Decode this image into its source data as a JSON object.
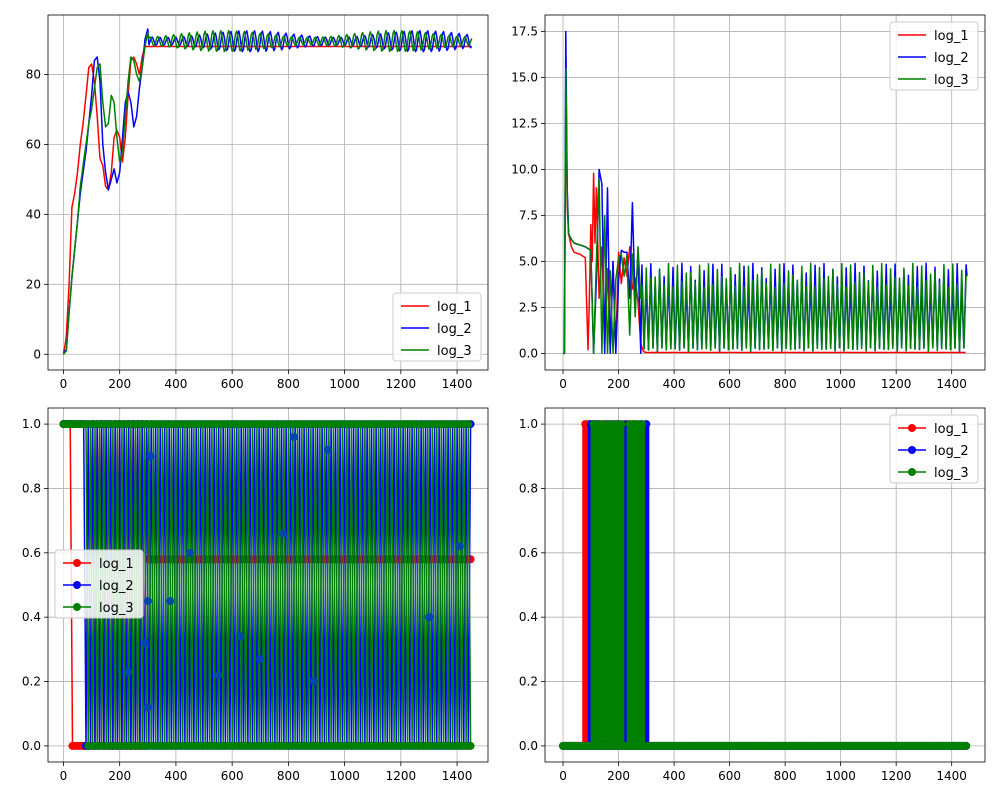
{
  "figure": {
    "rows": 2,
    "cols": 2
  },
  "chart_data": [
    {
      "type": "line",
      "panel": "top-left",
      "title": "",
      "xlabel": "",
      "ylabel": "",
      "xlim": [
        -55,
        1510
      ],
      "ylim": [
        -4.5,
        97
      ],
      "xticks": [
        0,
        200,
        400,
        600,
        800,
        1000,
        1200,
        1400
      ],
      "yticks": [
        0,
        20,
        40,
        60,
        80
      ],
      "ytick_labels": [
        "0",
        "20",
        "40",
        "60",
        "80"
      ],
      "grid": true,
      "legend": {
        "location": "lower-right",
        "entries": [
          "log_1",
          "log_2",
          "log_3"
        ]
      },
      "series": [
        {
          "name": "log_1",
          "color": "#ff0000",
          "x": [
            0,
            10,
            20,
            30,
            40,
            50,
            60,
            70,
            80,
            90,
            100,
            110,
            120,
            130,
            140,
            150,
            160,
            170,
            180,
            190,
            200,
            210,
            220,
            230,
            240,
            250,
            260,
            270,
            280,
            290,
            300,
            350,
            400,
            500,
            600,
            700,
            800,
            900,
            1000,
            1100,
            1200,
            1300,
            1400,
            1450
          ],
          "y": [
            0,
            5,
            20,
            42,
            46,
            52,
            60,
            66,
            74,
            82,
            83,
            78,
            68,
            56,
            54,
            48,
            47,
            52,
            62,
            64,
            62,
            55,
            62,
            74,
            84,
            85,
            83,
            80,
            85,
            88,
            88,
            88,
            88,
            88,
            88,
            88,
            88,
            88,
            88,
            88,
            88,
            88,
            88,
            88
          ]
        },
        {
          "name": "log_2",
          "color": "#0000ff",
          "x": [
            0,
            10,
            20,
            30,
            40,
            50,
            60,
            70,
            80,
            90,
            100,
            110,
            120,
            130,
            140,
            150,
            160,
            170,
            180,
            190,
            200,
            210,
            220,
            230,
            240,
            250,
            260,
            270,
            280,
            290,
            300
          ],
          "y": [
            1,
            1,
            12,
            22,
            30,
            38,
            46,
            52,
            58,
            66,
            74,
            84,
            85,
            78,
            60,
            52,
            47,
            50,
            53,
            49,
            52,
            62,
            72,
            75,
            72,
            65,
            68,
            76,
            82,
            90,
            93
          ]
        },
        {
          "name": "log_3",
          "color": "#008000",
          "x": [
            0,
            10,
            20,
            30,
            40,
            50,
            60,
            70,
            80,
            90,
            100,
            110,
            120,
            130,
            140,
            150,
            160,
            170,
            180,
            190,
            200,
            210,
            220,
            230,
            240,
            250,
            260,
            270,
            280,
            290,
            300
          ],
          "y": [
            0,
            1,
            12,
            22,
            30,
            38,
            48,
            54,
            60,
            66,
            70,
            76,
            82,
            83,
            72,
            65,
            66,
            74,
            72,
            62,
            55,
            58,
            68,
            78,
            85,
            84,
            80,
            78,
            82,
            88,
            92
          ]
        }
      ],
      "oscillation": {
        "start": 280,
        "end": 1455,
        "step": 4,
        "base": 89.5,
        "amplitude": 2.8,
        "period": 28
      }
    },
    {
      "type": "line",
      "panel": "top-right",
      "title": "",
      "xlabel": "",
      "ylabel": "",
      "xlim": [
        -65,
        1520
      ],
      "ylim": [
        -0.9,
        18.4
      ],
      "xticks": [
        0,
        200,
        400,
        600,
        800,
        1000,
        1200,
        1400
      ],
      "yticks": [
        0,
        2.5,
        5,
        7.5,
        10,
        12.5,
        15,
        17.5
      ],
      "ytick_labels": [
        "0.0",
        "2.5",
        "5.0",
        "7.5",
        "10.0",
        "12.5",
        "15.0",
        "17.5"
      ],
      "grid": true,
      "legend": {
        "location": "top-right",
        "entries": [
          "log_1",
          "log_2",
          "log_3"
        ]
      },
      "series": [
        {
          "name": "log_1",
          "color": "#ff0000",
          "x": [
            0,
            5,
            10,
            15,
            20,
            30,
            40,
            60,
            80,
            90,
            95,
            100,
            105,
            110,
            115,
            120,
            130,
            140,
            150,
            160,
            170,
            180,
            190,
            200,
            210,
            220,
            230,
            240,
            250,
            260,
            270,
            280,
            290,
            300,
            350,
            400,
            600,
            800,
            1000,
            1200,
            1400,
            1450
          ],
          "y": [
            0,
            0,
            14,
            8,
            6.5,
            5.8,
            5.5,
            5.4,
            5.2,
            0.2,
            3,
            7,
            5,
            9.8,
            6,
            9,
            3,
            5.8,
            0.3,
            4.6,
            0.4,
            5.0,
            0.3,
            5.5,
            3.8,
            5.2,
            4.2,
            5.8,
            3.5,
            4.1,
            2.8,
            0.5,
            0.1,
            0.05,
            0.05,
            0.05,
            0.05,
            0.05,
            0.05,
            0.05,
            0.05,
            0.05
          ]
        },
        {
          "name": "log_2",
          "color": "#0000ff",
          "x": [
            0,
            5,
            10,
            15,
            20,
            30,
            40,
            60,
            80,
            100,
            110,
            120,
            130,
            140,
            150,
            160,
            170,
            180,
            190,
            200,
            210,
            220,
            230,
            240,
            250,
            260,
            270,
            280
          ],
          "y": [
            0,
            0,
            17.5,
            9,
            6.5,
            6.2,
            6,
            5.9,
            5.8,
            5.6,
            0,
            4,
            10,
            9.2,
            0,
            9,
            0,
            5,
            0,
            4,
            5.6,
            5.5,
            5.5,
            3,
            8.2,
            2.5,
            5.5,
            0
          ]
        },
        {
          "name": "log_3",
          "color": "#008000",
          "x": [
            0,
            5,
            10,
            15,
            20,
            30,
            40,
            60,
            80,
            100,
            110,
            120,
            130,
            140,
            150,
            160,
            170,
            180,
            190,
            200,
            210,
            220,
            230,
            240,
            250,
            260,
            270,
            280
          ],
          "y": [
            0,
            0,
            15.5,
            8.5,
            6.5,
            6.2,
            6,
            5.9,
            5.8,
            5.6,
            0,
            5,
            9.5,
            0,
            7.5,
            0,
            4.5,
            0,
            4,
            5.2,
            5.4,
            4.2,
            5.3,
            1,
            5.4,
            2,
            5.8,
            3
          ]
        }
      ],
      "oscillation": {
        "start": 280,
        "end": 1455,
        "step": 8,
        "low": 0.1,
        "high_min": 3.6,
        "high_max": 4.9,
        "last_high": 4.2
      }
    },
    {
      "type": "stem",
      "panel": "bottom-left",
      "title": "",
      "xlabel": "",
      "ylabel": "",
      "xlim": [
        -55,
        1510
      ],
      "ylim": [
        -0.05,
        1.05
      ],
      "xticks": [
        0,
        200,
        400,
        600,
        800,
        1000,
        1200,
        1400
      ],
      "yticks": [
        0,
        0.2,
        0.4,
        0.6,
        0.8,
        1
      ],
      "ytick_labels": [
        "0.0",
        "0.2",
        "0.4",
        "0.6",
        "0.8",
        "1.0"
      ],
      "grid": true,
      "legend": {
        "location": "center-left",
        "entries": [
          "log_1",
          "log_2",
          "log_3"
        ]
      },
      "series": [
        {
          "name": "log_1",
          "color": "#ff0000",
          "marker": "circle"
        },
        {
          "name": "log_2",
          "color": "#0000ff",
          "marker": "circle"
        },
        {
          "name": "log_3",
          "color": "#008000",
          "marker": "circle"
        }
      ],
      "binary": {
        "start": 0,
        "end": 1455,
        "step": 8,
        "red_switch": 90,
        "red_plateau_start": 300,
        "red_plateau": 0.58
      },
      "scattered_points": [
        [
          230,
          0.23
        ],
        [
          300,
          0.45
        ],
        [
          310,
          0.9
        ],
        [
          380,
          0.45
        ],
        [
          450,
          0.6
        ],
        [
          550,
          0.22
        ],
        [
          630,
          0.34
        ],
        [
          700,
          0.27
        ],
        [
          780,
          0.66
        ],
        [
          820,
          0.96
        ],
        [
          890,
          0.2
        ],
        [
          940,
          0.92
        ],
        [
          1300,
          0.4
        ],
        [
          1410,
          0.62
        ],
        [
          300,
          0.12
        ],
        [
          290,
          0.32
        ]
      ]
    },
    {
      "type": "stem",
      "panel": "bottom-right",
      "title": "",
      "xlabel": "",
      "ylabel": "",
      "xlim": [
        -65,
        1520
      ],
      "ylim": [
        -0.05,
        1.05
      ],
      "xticks": [
        0,
        200,
        400,
        600,
        800,
        1000,
        1200,
        1400
      ],
      "yticks": [
        0,
        0.2,
        0.4,
        0.6,
        0.8,
        1
      ],
      "ytick_labels": [
        "0.0",
        "0.2",
        "0.4",
        "0.6",
        "0.8",
        "1.0"
      ],
      "grid": true,
      "legend": {
        "location": "top-right",
        "entries": [
          "log_1",
          "log_2",
          "log_3"
        ]
      },
      "series": [
        {
          "name": "log_1",
          "color": "#ff0000",
          "marker": "circle",
          "ones": [
            80,
            90,
            100,
            110,
            140,
            150,
            170,
            190,
            220,
            240,
            250
          ]
        },
        {
          "name": "log_2",
          "color": "#0000ff",
          "marker": "circle",
          "ones": [
            100,
            120,
            130,
            160,
            180,
            200,
            230,
            260,
            280,
            300
          ]
        },
        {
          "name": "log_3",
          "color": "#008000",
          "marker": "circle",
          "ones": [
            110,
            130,
            150,
            170,
            190,
            210,
            240,
            255,
            270,
            285
          ]
        }
      ],
      "zeros": {
        "start": 0,
        "end": 1455,
        "step": 6
      }
    }
  ]
}
